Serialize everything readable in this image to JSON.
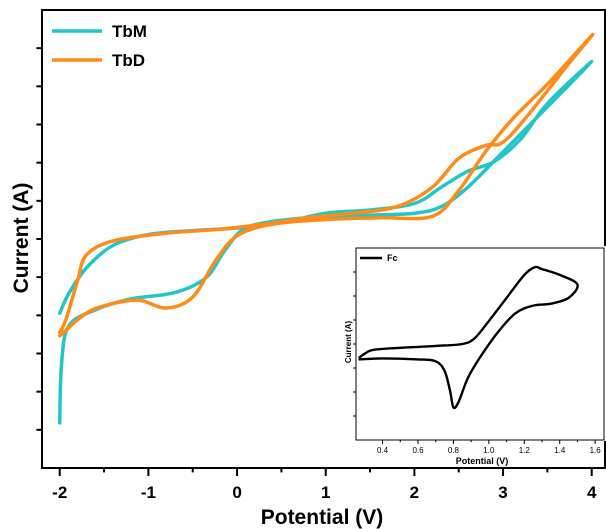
{
  "chart_data": [
    {
      "type": "line",
      "xlabel": "Potential (V)",
      "ylabel": "Current (A)",
      "xlim": [
        -2.2,
        4.15
      ],
      "ylim": [
        -1.0,
        6.1
      ],
      "xticks": [
        -2,
        -1,
        0,
        1,
        2,
        3,
        4
      ],
      "xtick_labels": [
        "-2",
        "-1",
        "0",
        "1",
        "2",
        "3",
        "4"
      ],
      "y_tick_labels_shown": false,
      "grid": false,
      "legend_position": "top-left",
      "series": [
        {
          "name": "TbM",
          "color": "#22c6c6",
          "points": [
            [
              -2.0,
              -0.3
            ],
            [
              -1.98,
              0.6
            ],
            [
              -1.9,
              1.2
            ],
            [
              -1.6,
              1.45
            ],
            [
              -1.2,
              1.62
            ],
            [
              -0.7,
              1.72
            ],
            [
              -0.35,
              1.95
            ],
            [
              -0.15,
              2.35
            ],
            [
              0.05,
              2.68
            ],
            [
              0.3,
              2.8
            ],
            [
              0.8,
              2.88
            ],
            [
              1.5,
              2.92
            ],
            [
              2.0,
              2.95
            ],
            [
              2.3,
              3.05
            ],
            [
              2.6,
              3.35
            ],
            [
              3.0,
              3.9
            ],
            [
              3.5,
              4.6
            ],
            [
              4.0,
              5.3
            ],
            [
              3.5,
              4.65
            ],
            [
              3.2,
              4.1
            ],
            [
              2.9,
              3.75
            ],
            [
              2.6,
              3.6
            ],
            [
              2.3,
              3.35
            ],
            [
              2.0,
              3.1
            ],
            [
              1.5,
              3.0
            ],
            [
              1.0,
              2.95
            ],
            [
              0.5,
              2.8
            ],
            [
              0.0,
              2.72
            ],
            [
              -0.5,
              2.68
            ],
            [
              -1.0,
              2.62
            ],
            [
              -1.4,
              2.45
            ],
            [
              -1.7,
              2.1
            ],
            [
              -1.9,
              1.7
            ],
            [
              -2.0,
              1.4
            ]
          ]
        },
        {
          "name": "TbD",
          "color": "#ff8c1a",
          "points": [
            [
              -2.0,
              1.05
            ],
            [
              -1.7,
              1.4
            ],
            [
              -1.4,
              1.55
            ],
            [
              -1.1,
              1.6
            ],
            [
              -0.8,
              1.48
            ],
            [
              -0.5,
              1.65
            ],
            [
              -0.25,
              2.2
            ],
            [
              0.0,
              2.6
            ],
            [
              0.4,
              2.78
            ],
            [
              1.0,
              2.85
            ],
            [
              1.6,
              2.88
            ],
            [
              2.2,
              2.9
            ],
            [
              2.5,
              3.3
            ],
            [
              2.8,
              3.9
            ],
            [
              3.1,
              4.4
            ],
            [
              3.5,
              4.95
            ],
            [
              3.9,
              5.55
            ],
            [
              4.0,
              5.7
            ],
            [
              3.7,
              5.2
            ],
            [
              3.3,
              4.5
            ],
            [
              3.0,
              4.05
            ],
            [
              2.8,
              4.0
            ],
            [
              2.5,
              3.8
            ],
            [
              2.2,
              3.35
            ],
            [
              1.8,
              3.05
            ],
            [
              1.3,
              2.95
            ],
            [
              0.8,
              2.88
            ],
            [
              0.3,
              2.78
            ],
            [
              -0.2,
              2.7
            ],
            [
              -0.8,
              2.64
            ],
            [
              -1.4,
              2.52
            ],
            [
              -1.7,
              2.3
            ],
            [
              -1.8,
              1.9
            ],
            [
              -1.93,
              1.3
            ],
            [
              -2.0,
              1.1
            ]
          ]
        }
      ]
    },
    {
      "type": "line",
      "xlabel": "Potential (V)",
      "ylabel": "Current (A)",
      "xlim": [
        0.25,
        1.65
      ],
      "ylim": [
        0.0,
        1.0
      ],
      "xticks": [
        0.4,
        0.6,
        0.8,
        1.0,
        1.2,
        1.4,
        1.6
      ],
      "xtick_labels": [
        "0.4",
        "0.6",
        "0.8",
        "1.0",
        "1.2",
        "1.4",
        "1.6"
      ],
      "y_tick_labels_shown": false,
      "grid": false,
      "legend_position": "top-left",
      "series": [
        {
          "name": "Fc",
          "color": "#000000",
          "points": [
            [
              0.27,
              0.42
            ],
            [
              0.4,
              0.425
            ],
            [
              0.6,
              0.42
            ],
            [
              0.7,
              0.41
            ],
            [
              0.75,
              0.36
            ],
            [
              0.78,
              0.26
            ],
            [
              0.8,
              0.17
            ],
            [
              0.83,
              0.2
            ],
            [
              0.88,
              0.32
            ],
            [
              0.95,
              0.43
            ],
            [
              1.05,
              0.56
            ],
            [
              1.15,
              0.66
            ],
            [
              1.25,
              0.7
            ],
            [
              1.35,
              0.71
            ],
            [
              1.45,
              0.74
            ],
            [
              1.5,
              0.81
            ],
            [
              1.4,
              0.86
            ],
            [
              1.3,
              0.89
            ],
            [
              1.26,
              0.9
            ],
            [
              1.2,
              0.86
            ],
            [
              1.1,
              0.74
            ],
            [
              1.0,
              0.62
            ],
            [
              0.92,
              0.53
            ],
            [
              0.85,
              0.5
            ],
            [
              0.7,
              0.49
            ],
            [
              0.5,
              0.48
            ],
            [
              0.35,
              0.47
            ],
            [
              0.3,
              0.45
            ],
            [
              0.27,
              0.43
            ]
          ]
        }
      ]
    }
  ]
}
